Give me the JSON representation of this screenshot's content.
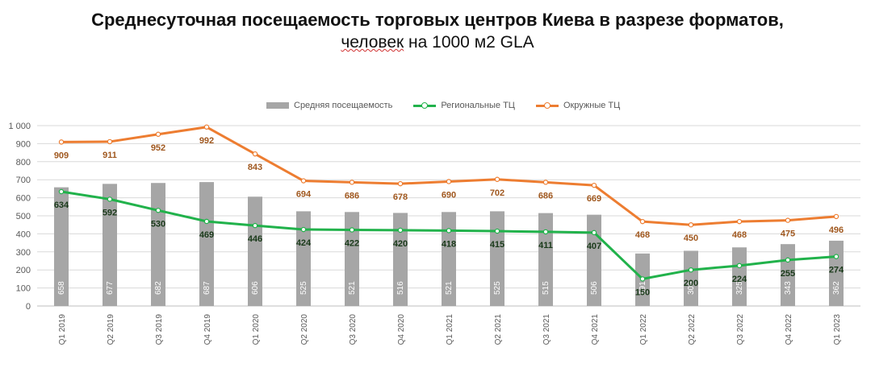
{
  "title": "Среднесуточная посещаемость торговых центров Киева в разрезе форматов,",
  "subtitle_word": "человек",
  "subtitle_rest": " на 1000 м2 GLA",
  "colors": {
    "bars": "#a6a6a6",
    "regional": "#21b24b",
    "district": "#ed7d31",
    "district_label": "#a0581f",
    "regional_label": "#1a3a1a",
    "bar_label": "#ffffff",
    "axis_text": "#595959",
    "grid": "#d9d9d9"
  },
  "chart_data": {
    "type": "bar",
    "categories": [
      "Q1 2019",
      "Q2 2019",
      "Q3 2019",
      "Q4 2019",
      "Q1 2020",
      "Q2 2020",
      "Q3 2020",
      "Q4 2020",
      "Q1 2021",
      "Q2 2021",
      "Q3 2021",
      "Q4 2021",
      "Q1 2022",
      "Q2 2022",
      "Q3 2022",
      "Q4 2022",
      "Q1 2023"
    ],
    "y_ticks": [
      "0",
      "100",
      "200",
      "300",
      "400",
      "500",
      "600",
      "700",
      "800",
      "900",
      "1 000"
    ],
    "ylim": [
      0,
      1000
    ],
    "grid": true,
    "legend_position": "top",
    "series": [
      {
        "name": "Средняя посещаемость",
        "kind": "bar",
        "values": [
          658,
          677,
          682,
          687,
          606,
          525,
          521,
          516,
          521,
          525,
          515,
          506,
          291,
          306,
          325,
          343,
          362
        ]
      },
      {
        "name": "Региональные ТЦ",
        "kind": "line",
        "values": [
          634,
          592,
          530,
          469,
          446,
          424,
          422,
          420,
          418,
          415,
          411,
          407,
          150,
          200,
          224,
          255,
          274
        ]
      },
      {
        "name": "Окружные ТЦ",
        "kind": "line",
        "values": [
          909,
          911,
          952,
          992,
          843,
          694,
          686,
          678,
          690,
          702,
          686,
          669,
          468,
          450,
          468,
          475,
          496
        ]
      }
    ]
  }
}
